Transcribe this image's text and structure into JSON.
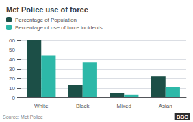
{
  "chart_data": {
    "type": "bar",
    "title": "Met Police use of force",
    "categories": [
      "White",
      "Black",
      "Mixed",
      "Asian"
    ],
    "series": [
      {
        "name": "Percentage of Population",
        "color": "#1c4f47",
        "values": [
          60,
          13,
          5,
          22
        ]
      },
      {
        "name": "Percentage of use of force incidents",
        "color": "#2db8a8",
        "values": [
          44,
          37,
          3,
          11
        ]
      }
    ],
    "ylim": [
      0,
      65
    ],
    "yticks": [
      0,
      10,
      20,
      30,
      40,
      50,
      60
    ],
    "grid": true,
    "legend": "top left",
    "annotations": [
      "Source: Met Police",
      "BBC"
    ]
  }
}
